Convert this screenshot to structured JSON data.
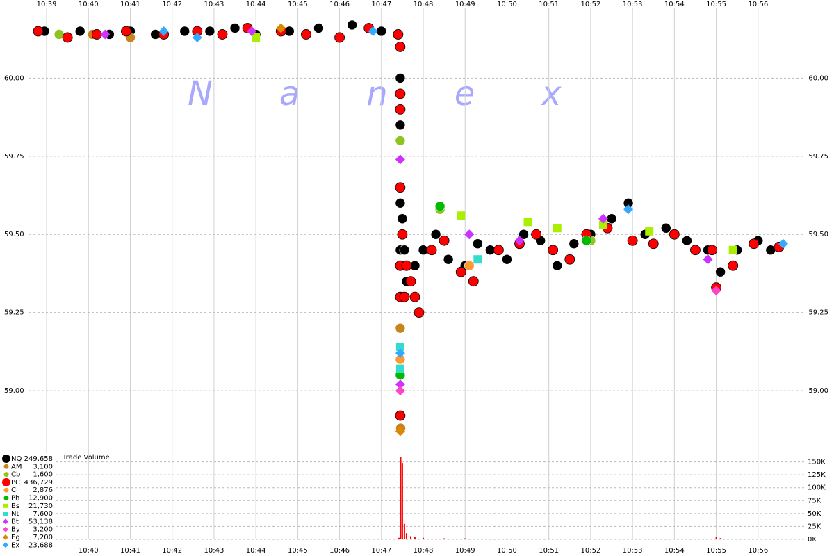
{
  "chart_data": [
    {
      "type": "scatter",
      "watermark": "Nanex",
      "xlim": [
        37.97,
        56.95
      ],
      "xticks": [
        {
          "value": 39,
          "label": "10:39"
        },
        {
          "value": 40,
          "label": "10:40"
        },
        {
          "value": 41,
          "label": "10:41"
        },
        {
          "value": 42,
          "label": "10:42"
        },
        {
          "value": 43,
          "label": "10:43"
        },
        {
          "value": 44,
          "label": "10:44"
        },
        {
          "value": 45,
          "label": "10:45"
        },
        {
          "value": 46,
          "label": "10:46"
        },
        {
          "value": 47,
          "label": "10:47"
        },
        {
          "value": 48,
          "label": "10:48"
        },
        {
          "value": 49,
          "label": "10:49"
        },
        {
          "value": 50,
          "label": "10:50"
        },
        {
          "value": 51,
          "label": "10:51"
        },
        {
          "value": 52,
          "label": "10:52"
        },
        {
          "value": 53,
          "label": "10:53"
        },
        {
          "value": 54,
          "label": "10:54"
        },
        {
          "value": 55,
          "label": "10:55"
        },
        {
          "value": 56,
          "label": "10:56"
        }
      ],
      "ylim": [
        58.8,
        60.25
      ],
      "yticks": [
        {
          "value": 59,
          "label": "59.00"
        },
        {
          "value": 59.25,
          "label": "59.25"
        },
        {
          "value": 59.5,
          "label": "59.50"
        },
        {
          "value": 59.75,
          "label": "59.75"
        },
        {
          "value": 60,
          "label": "60.00"
        }
      ],
      "series": [
        {
          "name": "NQ",
          "total": 249658,
          "total_label": "249,658",
          "color": "#000000",
          "marker": "circle",
          "x": [
            38.95,
            39.3,
            39.8,
            40.5,
            41.0,
            41.6,
            42.3,
            42.9,
            43.5,
            44.0,
            44.8,
            45.5,
            46.3,
            47.0,
            47.45,
            47.45,
            47.45,
            47.45,
            47.45,
            47.5,
            47.55,
            47.6,
            47.8,
            48.0,
            48.3,
            48.6,
            49.0,
            49.3,
            49.6,
            50.0,
            50.4,
            50.8,
            51.2,
            51.6,
            52.0,
            52.5,
            52.9,
            53.3,
            53.8,
            54.3,
            54.8,
            55.1,
            55.5,
            56.0,
            56.3
          ],
          "values": [
            60.15,
            60.14,
            60.15,
            60.14,
            60.15,
            60.14,
            60.15,
            60.15,
            60.16,
            60.14,
            60.15,
            60.16,
            60.17,
            60.15,
            60.0,
            59.85,
            59.6,
            59.45,
            59.3,
            59.55,
            59.45,
            59.35,
            59.4,
            59.45,
            59.5,
            59.42,
            59.4,
            59.47,
            59.45,
            59.42,
            59.5,
            59.48,
            59.4,
            59.47,
            59.5,
            59.55,
            59.6,
            59.5,
            59.52,
            59.48,
            59.45,
            59.38,
            59.45,
            59.48,
            59.45
          ]
        },
        {
          "name": "AM",
          "total": 3100,
          "total_label": "3,100",
          "color": "#c8841c",
          "marker": "circle",
          "x": [
            40.1,
            41.0,
            47.45,
            47.46
          ],
          "values": [
            60.14,
            60.13,
            59.2,
            58.88
          ]
        },
        {
          "name": "Cb",
          "total": 1600,
          "total_label": "1,600",
          "color": "#8fc31f",
          "marker": "circle",
          "x": [
            39.3,
            47.45,
            48.4,
            52.0
          ],
          "values": [
            60.14,
            59.8,
            59.58,
            59.48
          ]
        },
        {
          "name": "PC",
          "total": 436729,
          "total_label": "436,729",
          "color": "#ff0000",
          "marker": "half",
          "x": [
            38.8,
            39.5,
            40.2,
            40.9,
            41.8,
            42.6,
            43.2,
            43.8,
            44.6,
            45.2,
            46.0,
            46.7,
            47.4,
            47.45,
            47.45,
            47.45,
            47.45,
            47.45,
            47.45,
            47.45,
            47.5,
            47.55,
            47.6,
            47.7,
            47.8,
            47.9,
            48.2,
            48.5,
            48.9,
            49.2,
            49.8,
            50.3,
            50.7,
            51.1,
            51.5,
            51.9,
            52.4,
            53.0,
            53.5,
            54.0,
            54.5,
            54.9,
            55.0,
            55.4,
            55.9,
            56.5
          ],
          "values": [
            60.15,
            60.13,
            60.14,
            60.15,
            60.14,
            60.15,
            60.14,
            60.16,
            60.15,
            60.14,
            60.13,
            60.16,
            60.14,
            60.1,
            59.95,
            59.9,
            59.65,
            59.4,
            59.3,
            58.92,
            59.5,
            59.3,
            59.4,
            59.35,
            59.3,
            59.25,
            59.45,
            59.48,
            59.38,
            59.35,
            59.45,
            59.47,
            59.5,
            59.45,
            59.42,
            59.5,
            59.52,
            59.48,
            59.47,
            59.5,
            59.45,
            59.45,
            59.33,
            59.4,
            59.47,
            59.46
          ]
        },
        {
          "name": "Ci",
          "total": 2876,
          "total_label": "2,876",
          "color": "#ff9933",
          "marker": "circle",
          "x": [
            47.45,
            49.1
          ],
          "values": [
            59.1,
            59.4
          ]
        },
        {
          "name": "Ph",
          "total": 12900,
          "total_label": "12,900",
          "color": "#00bb00",
          "marker": "circle",
          "x": [
            47.45,
            48.4,
            51.9
          ],
          "values": [
            59.05,
            59.59,
            59.48
          ]
        },
        {
          "name": "Bs",
          "total": 21730,
          "total_label": "21,730",
          "color": "#aaee00",
          "marker": "square",
          "x": [
            44.0,
            48.9,
            50.5,
            51.2,
            52.3,
            53.4,
            55.4
          ],
          "values": [
            60.13,
            59.56,
            59.54,
            59.52,
            59.53,
            59.51,
            59.45
          ]
        },
        {
          "name": "Nt",
          "total": 7600,
          "total_label": "7,600",
          "color": "#33ddcc",
          "marker": "square",
          "x": [
            47.45,
            47.45,
            49.3
          ],
          "values": [
            59.14,
            59.07,
            59.42
          ]
        },
        {
          "name": "Bt",
          "total": 53138,
          "total_label": "53,138",
          "color": "#cc33ff",
          "marker": "diamond",
          "x": [
            40.4,
            43.9,
            47.45,
            47.45,
            49.1,
            50.3,
            52.3,
            54.8
          ],
          "values": [
            60.14,
            60.15,
            59.74,
            59.02,
            59.5,
            59.48,
            59.55,
            59.42
          ]
        },
        {
          "name": "By",
          "total": 3200,
          "total_label": "3,200",
          "color": "#ff44cc",
          "marker": "diamond",
          "x": [
            47.45,
            55.0
          ],
          "values": [
            59.0,
            59.32
          ]
        },
        {
          "name": "Eg",
          "total": 7200,
          "total_label": "7,200",
          "color": "#dd8800",
          "marker": "diamond",
          "x": [
            44.6,
            47.45
          ],
          "values": [
            60.16,
            58.87
          ]
        },
        {
          "name": "Ex",
          "total": 23688,
          "total_label": "23,688",
          "color": "#33aaff",
          "marker": "diamond",
          "x": [
            41.8,
            42.6,
            46.8,
            47.45,
            52.9,
            56.6
          ],
          "values": [
            60.15,
            60.13,
            60.15,
            59.12,
            59.58,
            59.47
          ]
        }
      ]
    },
    {
      "type": "bar",
      "title": "Trade Volume",
      "xlim": [
        37.97,
        56.95
      ],
      "xticks": [
        {
          "value": 40,
          "label": "10:40"
        },
        {
          "value": 41,
          "label": "10:41"
        },
        {
          "value": 42,
          "label": "10:42"
        },
        {
          "value": 43,
          "label": "10:43"
        },
        {
          "value": 44,
          "label": "10:44"
        },
        {
          "value": 45,
          "label": "10:45"
        },
        {
          "value": 46,
          "label": "10:46"
        },
        {
          "value": 47,
          "label": "10:47"
        },
        {
          "value": 48,
          "label": "10:48"
        },
        {
          "value": 49,
          "label": "10:49"
        },
        {
          "value": 50,
          "label": "10:50"
        },
        {
          "value": 51,
          "label": "10:51"
        },
        {
          "value": 52,
          "label": "10:52"
        },
        {
          "value": 53,
          "label": "10:53"
        },
        {
          "value": 54,
          "label": "10:54"
        },
        {
          "value": 55,
          "label": "10:55"
        },
        {
          "value": 56,
          "label": "10:56"
        }
      ],
      "ylim": [
        0,
        167000
      ],
      "yticks": [
        {
          "value": 0,
          "label": "0K"
        },
        {
          "value": 25000,
          "label": "25K"
        },
        {
          "value": 50000,
          "label": "50K"
        },
        {
          "value": 75000,
          "label": "75K"
        },
        {
          "value": 100000,
          "label": "100K"
        },
        {
          "value": 125000,
          "label": "125K"
        },
        {
          "value": 150000,
          "label": "150K"
        }
      ],
      "series": [
        {
          "color": "#ff0000",
          "x": [
            39.2,
            41.5,
            43.7,
            45.1,
            46.5,
            47.42,
            47.46,
            47.5,
            47.55,
            47.6,
            47.7,
            47.8,
            48.0,
            48.5,
            49.0,
            50.0,
            51.0,
            52.0,
            53.0,
            54.0,
            55.0,
            55.1,
            56.0
          ],
          "values": [
            800,
            700,
            1000,
            900,
            800,
            3000,
            160000,
            148000,
            30000,
            12000,
            6000,
            4000,
            3000,
            2000,
            2000,
            1500,
            1500,
            1200,
            1200,
            1000,
            5000,
            2500,
            1000
          ]
        }
      ]
    }
  ]
}
